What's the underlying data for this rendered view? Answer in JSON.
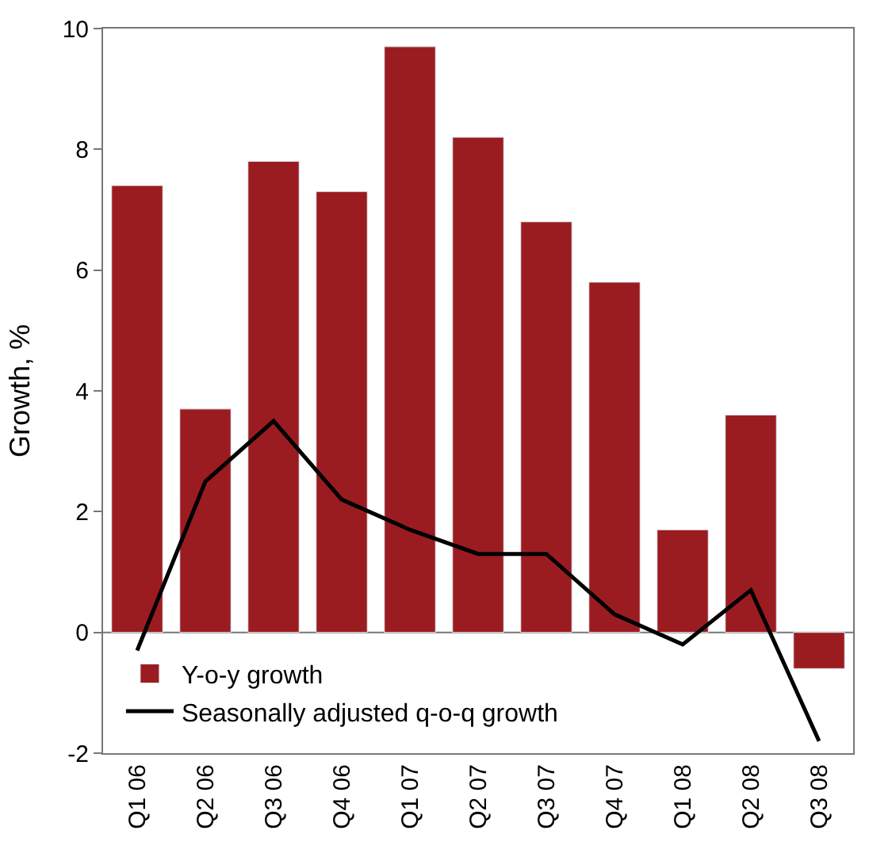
{
  "chart_data": {
    "type": "bar",
    "ylabel": "Growth, %",
    "categories": [
      "Q1 06",
      "Q2 06",
      "Q3 06",
      "Q4 06",
      "Q1 07",
      "Q2 07",
      "Q3 07",
      "Q4 07",
      "Q1 08",
      "Q2 08",
      "Q3 08"
    ],
    "series": [
      {
        "name": "Y-o-y growth",
        "color": "#9b1c20",
        "values": [
          7.4,
          3.7,
          7.8,
          7.3,
          9.7,
          8.2,
          6.8,
          5.8,
          1.7,
          3.6,
          -0.6
        ]
      },
      {
        "name": "Seasonally adjusted q-o-q growth",
        "type": "line",
        "color": "#000000",
        "values": [
          -0.3,
          2.5,
          3.5,
          2.2,
          1.7,
          1.3,
          1.3,
          0.3,
          -0.2,
          0.7,
          -1.8
        ]
      }
    ],
    "ylim": [
      -2,
      10
    ],
    "yticks": [
      -2,
      0,
      2,
      4,
      6,
      8,
      10
    ],
    "ref_lines": [
      {
        "axis": "y",
        "value": 0,
        "color": "#777777"
      }
    ],
    "grid": false,
    "legend": "bottom left",
    "marker": "none",
    "line_style": "solid"
  }
}
